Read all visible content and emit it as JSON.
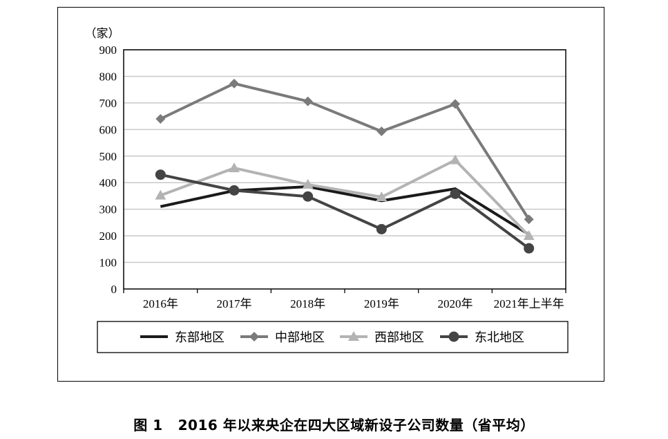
{
  "caption": {
    "figure_label": "图 1",
    "text": "2016 年以来央企在四大区域新设子公司数量（省平均）"
  },
  "chart_data": {
    "type": "line",
    "title": "2016 年以来央企在四大区域新设子公司数量（省平均）",
    "ylabel": "（家）",
    "xlabel": "",
    "categories": [
      "2016年",
      "2017年",
      "2018年",
      "2019年",
      "2020年",
      "2021年上半年"
    ],
    "ylim": [
      0,
      900
    ],
    "yticks": [
      0,
      100,
      200,
      300,
      400,
      500,
      600,
      700,
      800,
      900
    ],
    "grid": true,
    "legend": "bottom",
    "series": [
      {
        "name": "东部地区",
        "values": [
          310,
          370,
          385,
          332,
          377,
          205
        ],
        "color": "#1a1a1a",
        "marker": "none"
      },
      {
        "name": "中部地区",
        "values": [
          640,
          773,
          706,
          593,
          696,
          262
        ],
        "color": "#7a7a7a",
        "marker": "diamond"
      },
      {
        "name": "西部地区",
        "values": [
          352,
          455,
          393,
          346,
          485,
          200
        ],
        "color": "#b3b3b3",
        "marker": "triangle"
      },
      {
        "name": "东北地区",
        "values": [
          430,
          371,
          348,
          225,
          358,
          153
        ],
        "color": "#444444",
        "marker": "circle"
      }
    ]
  }
}
